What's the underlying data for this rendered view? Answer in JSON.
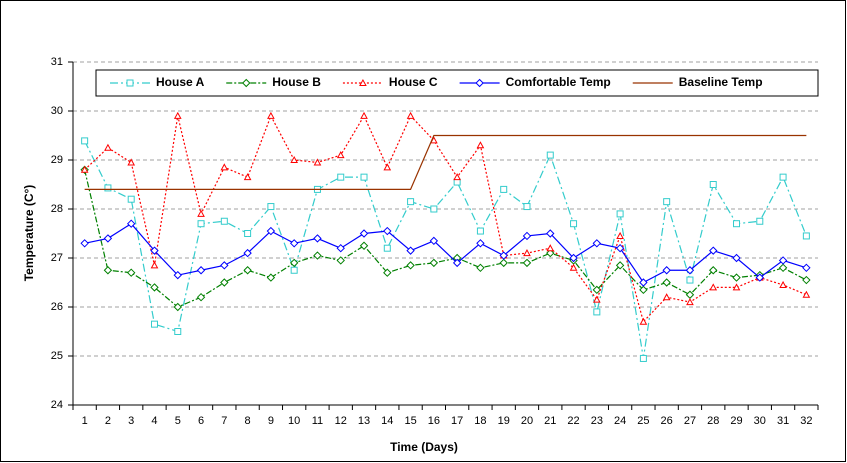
{
  "chart_data": {
    "type": "line",
    "y_label": "Temperature (C°)",
    "x_label": "Time (Days)",
    "categories": [
      "1",
      "2",
      "3",
      "4",
      "5",
      "6",
      "7",
      "8",
      "9",
      "10",
      "11",
      "12",
      "13",
      "14",
      "15",
      "16",
      "17",
      "18",
      "19",
      "20",
      "21",
      "22",
      "23",
      "24",
      "25",
      "26",
      "27",
      "28",
      "29",
      "30",
      "31",
      "32"
    ],
    "ylim": [
      24,
      31
    ],
    "yticks": [
      24,
      25,
      26,
      27,
      28,
      29,
      30,
      31
    ],
    "grid": true,
    "legend": "top",
    "series": [
      {
        "name": "House A",
        "color": "#33cccc",
        "dash": "8 3 2 3",
        "marker": "square",
        "values": [
          29.39,
          28.43,
          28.2,
          25.65,
          25.5,
          27.7,
          27.75,
          27.5,
          28.05,
          26.75,
          28.4,
          28.65,
          28.65,
          27.2,
          28.15,
          28.0,
          28.55,
          27.55,
          28.4,
          28.05,
          29.1,
          27.7,
          25.9,
          27.9,
          24.95,
          28.15,
          26.55,
          28.5,
          27.7,
          27.75,
          28.65,
          27.45
        ]
      },
      {
        "name": "House B",
        "color": "#008000",
        "dash": "6 2 2 2",
        "marker": "diamond",
        "values": [
          28.8,
          26.75,
          26.7,
          26.4,
          26.0,
          26.2,
          26.5,
          26.75,
          26.6,
          26.9,
          27.05,
          26.95,
          27.25,
          26.7,
          26.85,
          26.9,
          27.0,
          26.8,
          26.9,
          26.9,
          27.1,
          26.95,
          26.35,
          26.85,
          26.35,
          26.5,
          26.25,
          26.75,
          26.6,
          26.65,
          26.8,
          26.55
        ]
      },
      {
        "name": "House C",
        "color": "#ff0000",
        "dash": "2 2",
        "marker": "triangle",
        "values": [
          28.8,
          29.25,
          28.95,
          26.85,
          29.9,
          27.9,
          28.85,
          28.65,
          29.9,
          29.0,
          28.95,
          29.1,
          29.9,
          28.85,
          29.9,
          29.4,
          28.65,
          29.3,
          27.05,
          27.1,
          27.2,
          26.8,
          26.15,
          27.45,
          25.7,
          26.2,
          26.1,
          26.4,
          26.4,
          26.6,
          26.45,
          26.25
        ]
      },
      {
        "name": "Comfortable Temp",
        "color": "#0000ff",
        "dash": "none",
        "marker": "diamond",
        "values": [
          27.3,
          27.4,
          27.7,
          27.15,
          26.65,
          26.75,
          26.85,
          27.1,
          27.55,
          27.3,
          27.4,
          27.2,
          27.5,
          27.55,
          27.15,
          27.35,
          26.9,
          27.3,
          27.05,
          27.45,
          27.5,
          27.0,
          27.3,
          27.2,
          26.5,
          26.75,
          26.75,
          27.15,
          27.0,
          26.6,
          26.95,
          26.8
        ]
      },
      {
        "name": "Baseline Temp",
        "color": "#993300",
        "dash": "none",
        "marker": "none",
        "values": [
          28.4,
          28.4,
          28.4,
          28.4,
          28.4,
          28.4,
          28.4,
          28.4,
          28.4,
          28.4,
          28.4,
          28.4,
          28.4,
          28.4,
          28.4,
          29.5,
          29.5,
          29.5,
          29.5,
          29.5,
          29.5,
          29.5,
          29.5,
          29.5,
          29.5,
          29.5,
          29.5,
          29.5,
          29.5,
          29.5,
          29.5,
          29.5
        ]
      }
    ]
  }
}
